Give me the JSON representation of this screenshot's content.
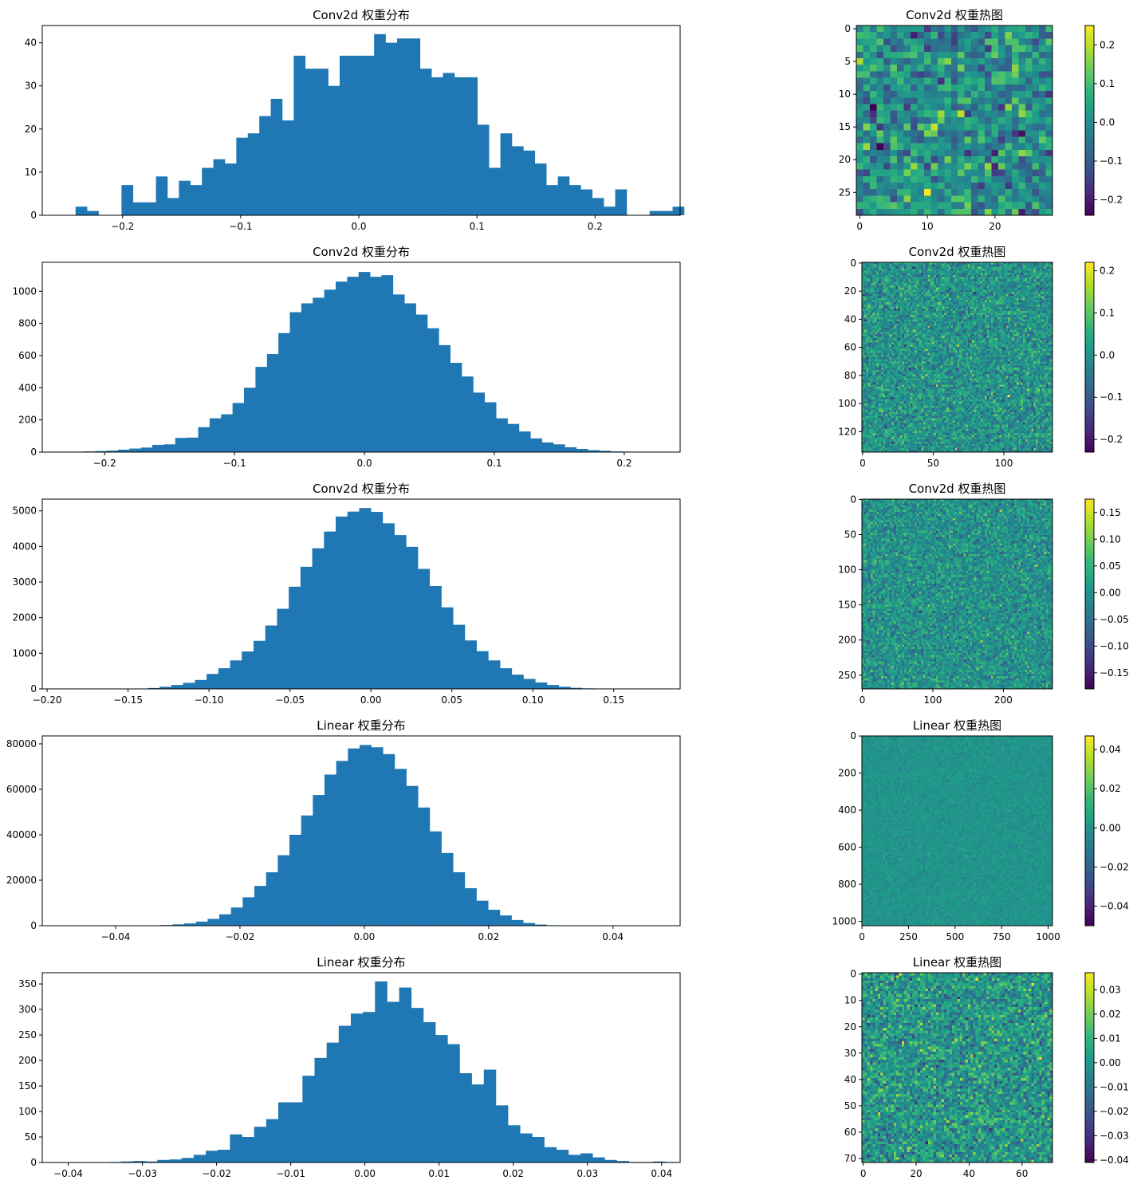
{
  "figure": {
    "bar_color": "#1f77b4",
    "colormap": "viridis",
    "viridis_stops": [
      "#440154",
      "#482878",
      "#3e4a89",
      "#31688e",
      "#26828e",
      "#1f9e89",
      "#35b779",
      "#6ece58",
      "#b5de2b",
      "#fde725"
    ]
  },
  "chart_data": [
    {
      "type": "bar",
      "title": "Conv2d 权重分布",
      "xlim": [
        -0.268,
        0.272
      ],
      "ylim": [
        0,
        44
      ],
      "xticks": [
        -0.2,
        -0.1,
        0.0,
        0.1,
        0.2
      ],
      "xtick_labels": [
        "−0.2",
        "−0.1",
        "0.0",
        "0.1",
        "0.2"
      ],
      "yticks": [
        0,
        10,
        20,
        30,
        40
      ],
      "ytick_labels": [
        "0",
        "10",
        "20",
        "30",
        "40"
      ],
      "bin_start": -0.2398,
      "bin_width": 0.00972,
      "counts": [
        2,
        1,
        0,
        0,
        7,
        3,
        3,
        9,
        4,
        8,
        7,
        11,
        13,
        12,
        18,
        19,
        23,
        27,
        22,
        37,
        34,
        34,
        30,
        37,
        37,
        37,
        42,
        40,
        41,
        41,
        34,
        32,
        33,
        32,
        32,
        21,
        11,
        19,
        16,
        15,
        12,
        7,
        9,
        7,
        6,
        4,
        2,
        6,
        0,
        0,
        1,
        1,
        2
      ]
    },
    {
      "type": "heatmap",
      "title": "Conv2d 权重热图",
      "rows": 29,
      "cols": 29,
      "xticks": [
        0,
        10,
        20
      ],
      "xtick_labels": [
        "0",
        "10",
        "20"
      ],
      "yticks": [
        0,
        5,
        10,
        15,
        20,
        25
      ],
      "ytick_labels": [
        "0",
        "5",
        "10",
        "15",
        "20",
        "25"
      ],
      "vmin": -0.24,
      "vmax": 0.25,
      "colorbar_ticks": [
        0.2,
        0.1,
        0.0,
        -0.1,
        -0.2
      ],
      "colorbar_labels": [
        "0.2",
        "0.1",
        "0.0",
        "−0.1",
        "−0.2"
      ],
      "sd": 0.075
    },
    {
      "type": "bar",
      "title": "Conv2d 权重分布",
      "xlim": [
        -0.248,
        0.243
      ],
      "ylim": [
        0,
        1180
      ],
      "xticks": [
        -0.2,
        -0.1,
        0.0,
        0.1,
        0.2
      ],
      "xtick_labels": [
        "−0.2",
        "−0.1",
        "0.0",
        "0.1",
        "0.2"
      ],
      "yticks": [
        0,
        200,
        400,
        600,
        800,
        1000
      ],
      "ytick_labels": [
        "0",
        "200",
        "400",
        "600",
        "800",
        "1000"
      ],
      "bin_start": -0.225,
      "bin_width": 0.00882,
      "counts": [
        2,
        4,
        6,
        9,
        15,
        22,
        28,
        45,
        48,
        88,
        90,
        155,
        210,
        235,
        305,
        400,
        530,
        610,
        740,
        870,
        925,
        960,
        1010,
        1060,
        1090,
        1120,
        1090,
        1100,
        980,
        925,
        855,
        770,
        665,
        555,
        470,
        370,
        310,
        210,
        175,
        128,
        85,
        60,
        48,
        30,
        20,
        12,
        8,
        4,
        3,
        2,
        1
      ]
    },
    {
      "type": "heatmap",
      "title": "Conv2d 权重热图",
      "rows": 135,
      "cols": 135,
      "xticks": [
        0,
        50,
        100
      ],
      "xtick_labels": [
        "0",
        "50",
        "100"
      ],
      "yticks": [
        0,
        20,
        40,
        60,
        80,
        100,
        120
      ],
      "ytick_labels": [
        "0",
        "20",
        "40",
        "60",
        "80",
        "100",
        "120"
      ],
      "vmin": -0.23,
      "vmax": 0.22,
      "colorbar_ticks": [
        0.2,
        0.1,
        0.0,
        -0.1,
        -0.2
      ],
      "colorbar_labels": [
        "0.2",
        "0.1",
        "0.0",
        "−0.1",
        "−0.2"
      ],
      "sd": 0.05
    },
    {
      "type": "bar",
      "title": "Conv2d 权重分布",
      "xlim": [
        -0.203,
        0.191
      ],
      "ylim": [
        0,
        5330
      ],
      "xticks": [
        -0.2,
        -0.15,
        -0.1,
        -0.05,
        0.0,
        0.05,
        0.1,
        0.15
      ],
      "xtick_labels": [
        "−0.20",
        "−0.15",
        "−0.10",
        "−0.05",
        "0.00",
        "0.05",
        "0.10",
        "0.15"
      ],
      "yticks": [
        0,
        1000,
        2000,
        3000,
        4000,
        5000
      ],
      "ytick_labels": [
        "0",
        "1000",
        "2000",
        "3000",
        "4000",
        "5000"
      ],
      "bin_start": -0.145,
      "bin_width": 0.00725,
      "counts": [
        10,
        25,
        60,
        110,
        170,
        250,
        420,
        580,
        800,
        1050,
        1350,
        1780,
        2250,
        2870,
        3430,
        3950,
        4420,
        4840,
        4980,
        5080,
        4970,
        4650,
        4320,
        3990,
        3370,
        2890,
        2290,
        1800,
        1360,
        1060,
        800,
        580,
        400,
        280,
        180,
        110,
        60,
        30,
        15,
        8
      ]
    },
    {
      "type": "heatmap",
      "title": "Conv2d 权重热图",
      "rows": 270,
      "cols": 270,
      "xticks": [
        0,
        100,
        200
      ],
      "xtick_labels": [
        "0",
        "100",
        "200"
      ],
      "yticks": [
        0,
        50,
        100,
        150,
        200,
        250
      ],
      "ytick_labels": [
        "0",
        "50",
        "100",
        "150",
        "200",
        "250"
      ],
      "vmin": -0.18,
      "vmax": 0.175,
      "colorbar_ticks": [
        0.15,
        0.1,
        0.05,
        0.0,
        -0.05,
        -0.1,
        -0.15
      ],
      "colorbar_labels": [
        "0.15",
        "0.10",
        "0.05",
        "0.00",
        "−0.05",
        "−0.10",
        "−0.15"
      ],
      "sd": 0.035
    },
    {
      "type": "bar",
      "title": "Linear 权重分布",
      "xlim": [
        -0.0518,
        0.0508
      ],
      "ylim": [
        0,
        83500
      ],
      "xticks": [
        -0.04,
        -0.02,
        0.0,
        0.02,
        0.04
      ],
      "xtick_labels": [
        "−0.04",
        "−0.02",
        "0.00",
        "0.02",
        "0.04"
      ],
      "yticks": [
        0,
        20000,
        40000,
        60000,
        80000
      ],
      "ytick_labels": [
        "0",
        "20000",
        "40000",
        "60000",
        "80000"
      ],
      "bin_start": -0.0346,
      "bin_width": 0.00188,
      "counts": [
        100,
        300,
        600,
        1000,
        1800,
        3000,
        5000,
        8000,
        12500,
        17500,
        23500,
        31000,
        40000,
        48500,
        57500,
        66500,
        72500,
        78000,
        79500,
        78500,
        75500,
        69000,
        61500,
        52000,
        41500,
        32000,
        23500,
        16500,
        11000,
        7000,
        4500,
        2500,
        1200,
        500,
        200
      ]
    },
    {
      "type": "heatmap",
      "title": "Linear 权重热图",
      "rows": 1024,
      "cols": 1024,
      "xticks": [
        0,
        250,
        500,
        750,
        1000
      ],
      "xtick_labels": [
        "0",
        "250",
        "500",
        "750",
        "1000"
      ],
      "yticks": [
        0,
        200,
        400,
        600,
        800,
        1000
      ],
      "ytick_labels": [
        "0",
        "200",
        "400",
        "600",
        "800",
        "1000"
      ],
      "vmin": -0.05,
      "vmax": 0.047,
      "colorbar_ticks": [
        0.04,
        0.02,
        0.0,
        -0.02,
        -0.04
      ],
      "colorbar_labels": [
        "0.04",
        "0.02",
        "0.00",
        "−0.02",
        "−0.04"
      ],
      "sd": 0.0028
    },
    {
      "type": "bar",
      "title": "Linear 权重分布",
      "xlim": [
        -0.0435,
        0.0425
      ],
      "ylim": [
        0,
        372
      ],
      "xticks": [
        -0.04,
        -0.03,
        -0.02,
        -0.01,
        0.0,
        0.01,
        0.02,
        0.03,
        0.04
      ],
      "xtick_labels": [
        "−0.04",
        "−0.03",
        "−0.02",
        "−0.01",
        "0.00",
        "0.01",
        "0.02",
        "0.03",
        "0.04"
      ],
      "yticks": [
        0,
        50,
        100,
        150,
        200,
        250,
        300,
        350
      ],
      "ytick_labels": [
        "0",
        "50",
        "100",
        "150",
        "200",
        "250",
        "300",
        "350"
      ],
      "bin_start": -0.0345,
      "bin_width": 0.00163,
      "counts": [
        1,
        2,
        3,
        2,
        5,
        6,
        9,
        15,
        23,
        25,
        55,
        50,
        70,
        85,
        118,
        118,
        170,
        205,
        235,
        268,
        292,
        295,
        355,
        315,
        343,
        303,
        275,
        250,
        232,
        175,
        153,
        182,
        112,
        73,
        57,
        50,
        30,
        25,
        15,
        18,
        10,
        5,
        3,
        1,
        1,
        2,
        1
      ]
    },
    {
      "type": "heatmap",
      "title": "Linear 权重热图",
      "rows": 72,
      "cols": 72,
      "xticks": [
        0,
        20,
        40,
        60
      ],
      "xtick_labels": [
        "0",
        "20",
        "40",
        "60"
      ],
      "yticks": [
        0,
        10,
        20,
        30,
        40,
        50,
        60,
        70
      ],
      "ytick_labels": [
        "0",
        "10",
        "20",
        "30",
        "40",
        "50",
        "60",
        "70"
      ],
      "vmin": -0.041,
      "vmax": 0.037,
      "colorbar_ticks": [
        0.03,
        0.02,
        0.01,
        0.0,
        -0.01,
        -0.02,
        -0.03,
        -0.04
      ],
      "colorbar_labels": [
        "0.03",
        "0.02",
        "0.01",
        "0.00",
        "−0.01",
        "−0.02",
        "−0.03",
        "−0.04"
      ],
      "sd": 0.01
    }
  ]
}
